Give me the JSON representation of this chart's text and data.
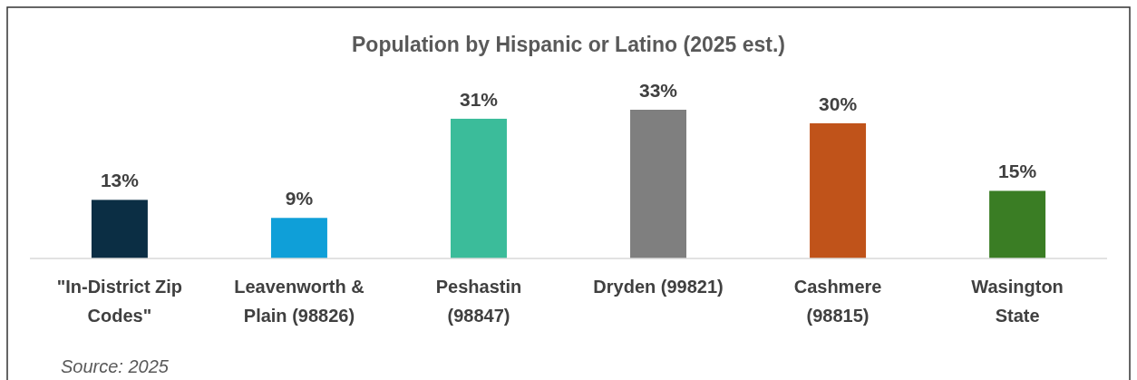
{
  "chart_data": {
    "type": "bar",
    "title": "Population by Hispanic or Latino (2025 est.)",
    "categories": [
      "\"In-District Zip Codes\"",
      "Leavenworth & Plain (98826)",
      "Peshastin (98847)",
      "Dryden (99821)",
      "Cashmere (98815)",
      "Wasington State"
    ],
    "values": [
      13,
      9,
      31,
      33,
      30,
      15
    ],
    "colors": [
      "#0b2e44",
      "#0f9fd8",
      "#3bbc9a",
      "#7f7f7f",
      "#c0531a",
      "#3a7d24"
    ],
    "value_labels": [
      "13%",
      "9%",
      "31%",
      "33%",
      "30%",
      "15%"
    ],
    "annotations": [
      "Source: 2025"
    ]
  }
}
